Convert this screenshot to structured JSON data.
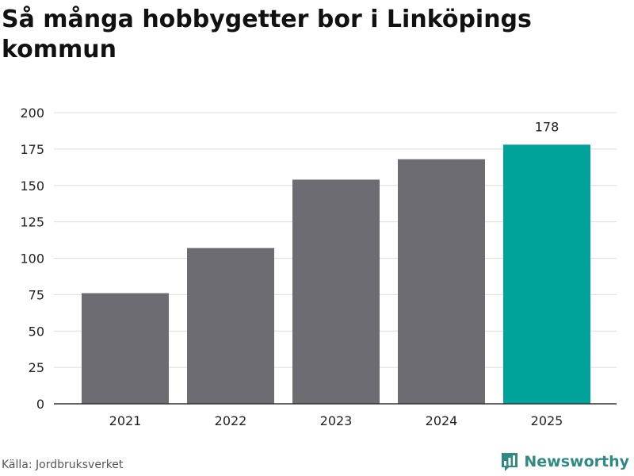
{
  "title": "Så många hobbygetter bor i Linköpings kommun",
  "source": "Källa: Jordbruksverket",
  "brand": {
    "name": "Newsworthy",
    "icon": "bar-chart-logo-icon"
  },
  "colors": {
    "bar": "#6d6c72",
    "highlight": "#00a39a",
    "grid": "#dcdcdc",
    "axis": "#333333",
    "brand": "#2e8a83"
  },
  "chart_data": {
    "type": "bar",
    "categories": [
      "2021",
      "2022",
      "2023",
      "2024",
      "2025"
    ],
    "values": [
      76,
      107,
      154,
      168,
      178
    ],
    "highlight_index": 4,
    "data_labels": [
      {
        "index": 4,
        "text": "178"
      }
    ],
    "yticks": [
      "0",
      "25",
      "50",
      "75",
      "100",
      "125",
      "150",
      "175",
      "200"
    ],
    "ylim": [
      0,
      200
    ],
    "grid": true
  }
}
